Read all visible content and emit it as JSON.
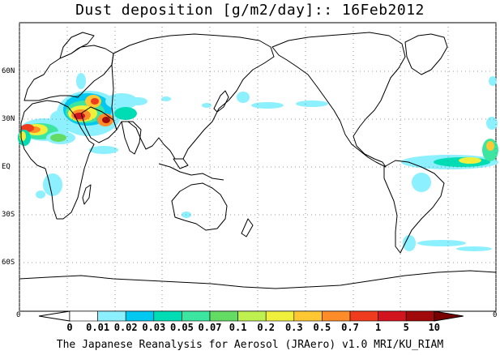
{
  "title": "Dust deposition [g/m2/day]:: 16Feb2012",
  "credit": "The Japanese Reanalysis for Aerosol (JRAero) v1.0 MRI/KU_RIAM",
  "latitude_labels": [
    "60N",
    "30N",
    "EQ",
    "30S",
    "60S"
  ],
  "axis_edge_labels": {
    "left": "0",
    "right": "0"
  },
  "colorbar": {
    "labels": [
      "0",
      "0.01",
      "0.02",
      "0.03",
      "0.05",
      "0.07",
      "0.1",
      "0.2",
      "0.3",
      "0.5",
      "0.7",
      "1",
      "5",
      "10"
    ],
    "colors": [
      "#ffffff",
      "#ffffff",
      "#8cf0ff",
      "#00c8f0",
      "#00dcb4",
      "#3ce6a0",
      "#64dc64",
      "#bef050",
      "#f0f03c",
      "#ffc832",
      "#ff8c28",
      "#f03c1e",
      "#d2141e",
      "#a00a0a",
      "#780000"
    ]
  },
  "colors": {
    "coast": "#000000",
    "grid": "#777777",
    "background": "#ffffff"
  }
}
